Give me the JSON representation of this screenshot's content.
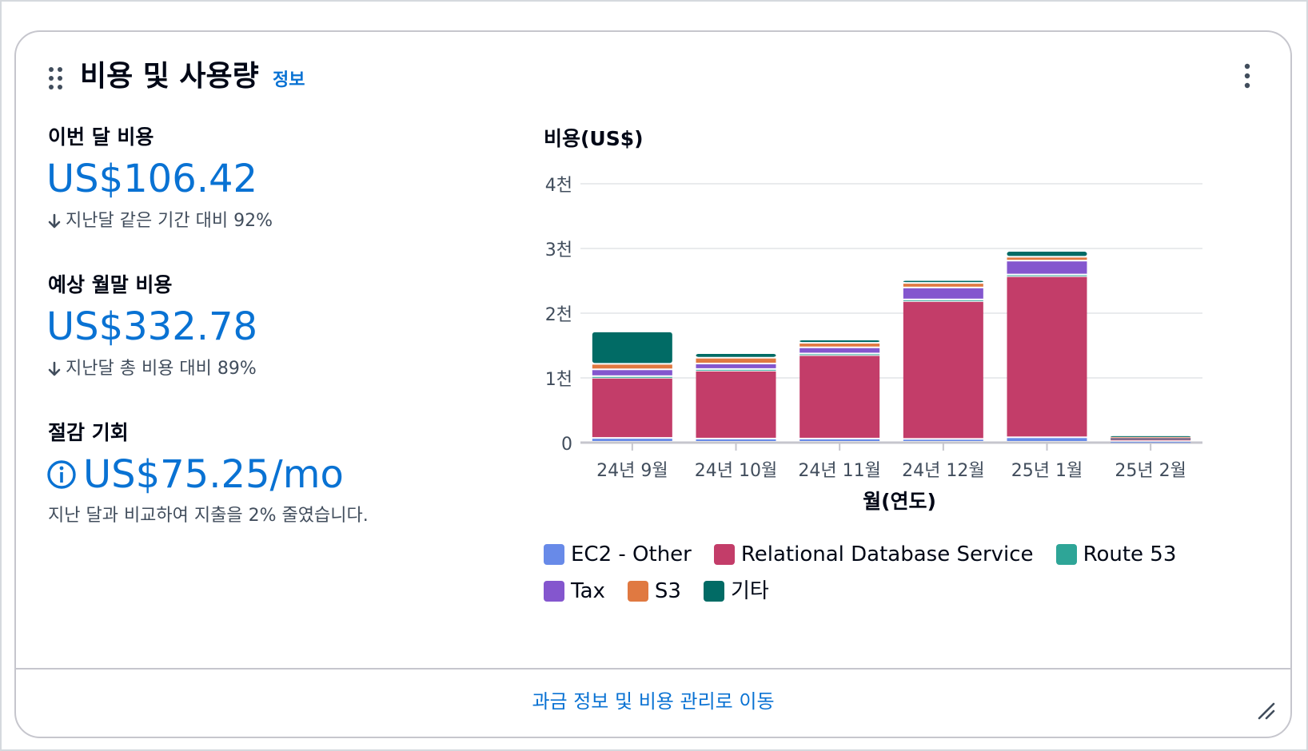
{
  "widget": {
    "title": "비용 및 사용량",
    "info_link": "정보",
    "footer_link": "과금 정보 및 비용 관리로 이동"
  },
  "metrics": {
    "this_month": {
      "label": "이번 달 비용",
      "value": "US$106.42",
      "change": "지난달 같은 기간 대비 92%"
    },
    "forecast": {
      "label": "예상 월말 비용",
      "value": "US$332.78",
      "change": "지난달 총 비용 대비 89%"
    },
    "savings": {
      "label": "절감 기회",
      "value": "US$75.25/mo",
      "note": "지난 달과 비교하여 지출을 2% 줄였습니다."
    }
  },
  "chart_data": {
    "type": "bar",
    "stacked": true,
    "title": "비용(US$)",
    "xlabel": "월(연도)",
    "ylabel": "비용(US$)",
    "ylim": [
      0,
      4000
    ],
    "yticks": [
      0,
      1000,
      2000,
      3000,
      4000
    ],
    "ytick_labels": [
      "0",
      "1천",
      "2천",
      "3천",
      "4천"
    ],
    "grid": true,
    "legend_position": "bottom",
    "categories": [
      "24년 9월",
      "24년 10월",
      "24년 11월",
      "24년 12월",
      "25년 1월",
      "25년 2월"
    ],
    "series": [
      {
        "name": "EC2 - Other",
        "color": "#688ae8",
        "values": [
          60,
          50,
          50,
          45,
          70,
          10
        ]
      },
      {
        "name": "Relational Database Service",
        "color": "#c33d69",
        "values": [
          930,
          1050,
          1290,
          2130,
          2490,
          45
        ]
      },
      {
        "name": "Route 53",
        "color": "#2ea597",
        "values": [
          25,
          25,
          25,
          25,
          25,
          5
        ]
      },
      {
        "name": "Tax",
        "color": "#8456ce",
        "values": [
          105,
          85,
          95,
          185,
          215,
          10
        ]
      },
      {
        "name": "S3",
        "color": "#e07941",
        "values": [
          85,
          90,
          70,
          70,
          60,
          10
        ]
      },
      {
        "name": "기타",
        "color": "#016b65",
        "values": [
          500,
          70,
          50,
          45,
          90,
          20
        ]
      }
    ]
  }
}
